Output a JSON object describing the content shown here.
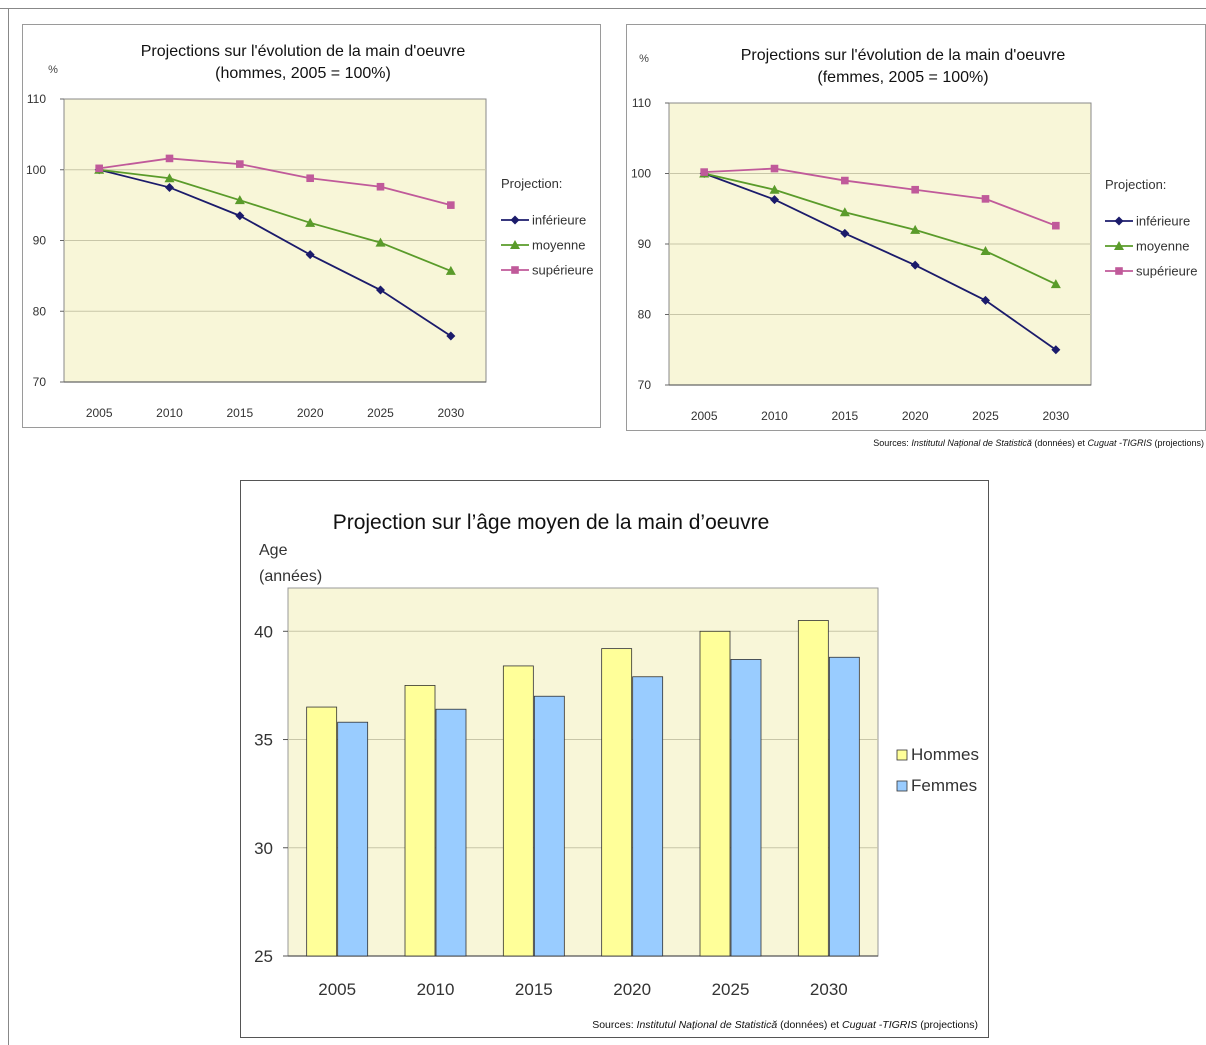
{
  "source_note": {
    "prefix": "Sources: ",
    "src1": "Institutul Național de Statistică",
    "mid": " (données) et ",
    "src2": "Cuguat -TIGRIS",
    "suffix": " (projections)"
  },
  "colors": {
    "plot_bg": "#f8f6d8",
    "inferieure": "#1b1b6b",
    "moyenne": "#5a9b2a",
    "superieure": "#c05a9a",
    "hommes": "#ffff99",
    "femmes": "#99ccff"
  },
  "chart_data": [
    {
      "type": "line",
      "title": [
        "Projections sur l'évolution de la main d'oeuvre",
        "(hommes, 2005 = 100%)"
      ],
      "ylabel": "%",
      "ylim": [
        70,
        110
      ],
      "yticks": [
        70,
        80,
        90,
        100,
        110
      ],
      "x": [
        "2005",
        "2010",
        "2015",
        "2020",
        "2025",
        "2030"
      ],
      "legend_title": "Projection:",
      "legend_position": "right",
      "grid": true,
      "series": [
        {
          "name": "inférieure",
          "marker": "diamond",
          "values": [
            100,
            97.5,
            93.5,
            88,
            83,
            76.5
          ]
        },
        {
          "name": "moyenne",
          "marker": "triangle",
          "values": [
            100,
            98.8,
            95.7,
            92.5,
            89.7,
            85.7
          ]
        },
        {
          "name": "supérieure",
          "marker": "square",
          "values": [
            100.2,
            101.6,
            100.8,
            98.8,
            97.6,
            95
          ]
        }
      ]
    },
    {
      "type": "line",
      "title": [
        "Projections sur l'évolution de la main d'oeuvre",
        "(femmes, 2005 = 100%)"
      ],
      "ylabel": "%",
      "ylim": [
        70,
        110
      ],
      "yticks": [
        70,
        80,
        90,
        100,
        110
      ],
      "x": [
        "2005",
        "2010",
        "2015",
        "2020",
        "2025",
        "2030"
      ],
      "legend_title": "Projection:",
      "legend_position": "right",
      "grid": true,
      "series": [
        {
          "name": "inférieure",
          "marker": "diamond",
          "values": [
            100,
            96.3,
            91.5,
            87,
            82,
            75
          ]
        },
        {
          "name": "moyenne",
          "marker": "triangle",
          "values": [
            100,
            97.7,
            94.5,
            92,
            89,
            84.3
          ]
        },
        {
          "name": "supérieure",
          "marker": "square",
          "values": [
            100.2,
            100.7,
            99,
            97.7,
            96.4,
            92.6
          ]
        }
      ]
    },
    {
      "type": "bar",
      "title": "Projection sur l’âge moyen de la main d’oeuvre",
      "ylabel": [
        "Age",
        "(années)"
      ],
      "ylim": [
        25,
        42
      ],
      "yticks": [
        25,
        30,
        35,
        40
      ],
      "categories": [
        "2005",
        "2010",
        "2015",
        "2020",
        "2025",
        "2030"
      ],
      "legend_position": "right",
      "grid": true,
      "series": [
        {
          "name": "Hommes",
          "values": [
            36.5,
            37.5,
            38.4,
            39.2,
            40,
            40.5
          ]
        },
        {
          "name": "Femmes",
          "values": [
            35.8,
            36.4,
            37,
            37.9,
            38.7,
            38.8
          ]
        }
      ]
    }
  ]
}
